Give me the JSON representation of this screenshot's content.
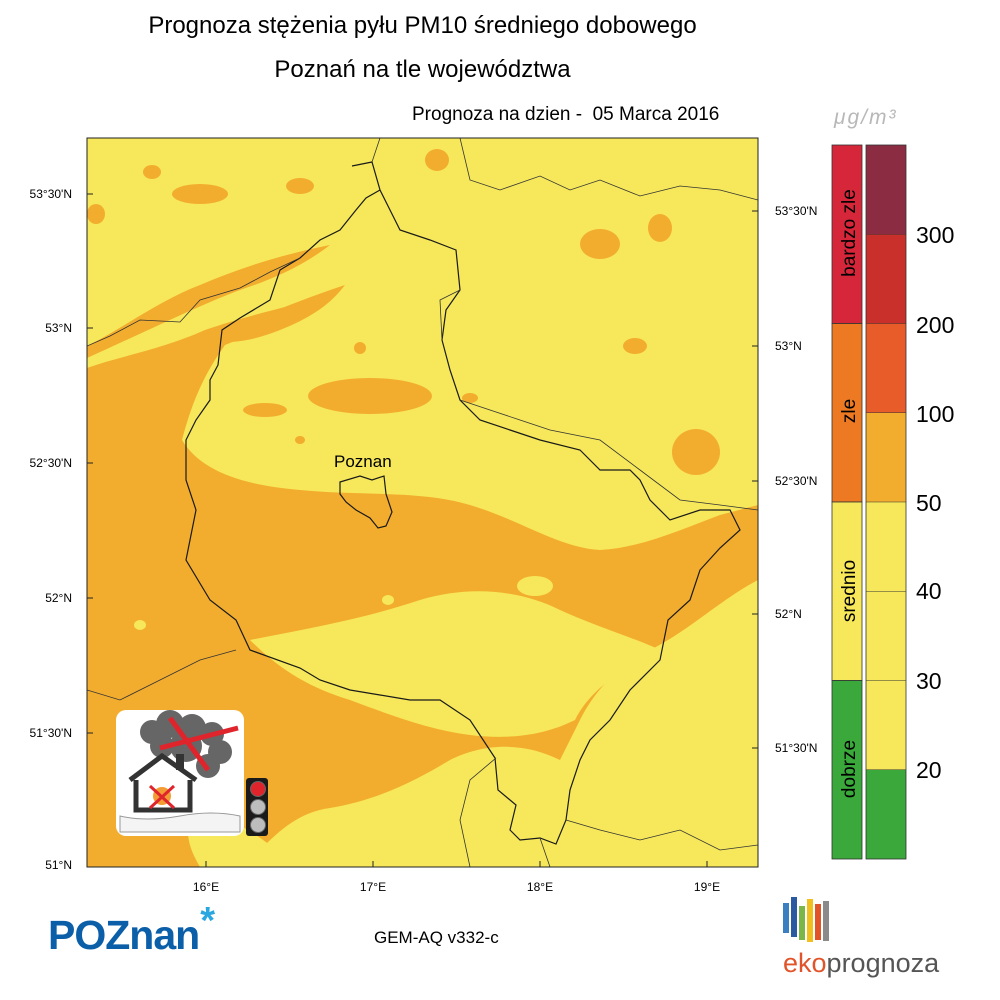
{
  "title": {
    "line1": "Prognoza stężenia pyłu PM10 średniego dobowego",
    "line2": "Poznań na tle województwa"
  },
  "forecast_date_label": "Prognoza na dzien -  05 Marca 2016",
  "map": {
    "city_label": "Poznan",
    "lat_labels_left": [
      "53°30'N",
      "53°N",
      "52°30'N",
      "52°N",
      "51°30'N",
      "51°N"
    ],
    "lat_labels_right": [
      "53°30'N",
      "53°N",
      "52°30'N",
      "52°N",
      "51°30'N"
    ],
    "lon_labels": [
      "16°E",
      "17°E",
      "18°E",
      "19°E"
    ],
    "colors": {
      "yellow": "#f6e85a",
      "orange": "#f3ad2e",
      "border": "#1a1a1a"
    }
  },
  "legend": {
    "unit": "μg/m³",
    "categories": [
      {
        "label": "bardzo zle",
        "color": "#d6273a"
      },
      {
        "label": "zle",
        "color": "#ed7a22"
      },
      {
        "label": "srednio",
        "color": "#f6e85a"
      },
      {
        "label": "dobrze",
        "color": "#3aa83b"
      }
    ],
    "scale_colors": [
      "#8c2c43",
      "#c9302c",
      "#e85c2a",
      "#f3ad2e",
      "#f6e85a",
      "#f6e85a",
      "#f6e85a",
      "#3aa83b",
      "#3aa83b"
    ],
    "scale_values": [
      "300",
      "200",
      "100",
      "50",
      "40",
      "30",
      "20"
    ]
  },
  "footer": {
    "model_label": "GEM-AQ v332-c",
    "logo_left_text": "POZnan",
    "logo_right_eko": "eko",
    "logo_right_prog": "prognoza"
  }
}
